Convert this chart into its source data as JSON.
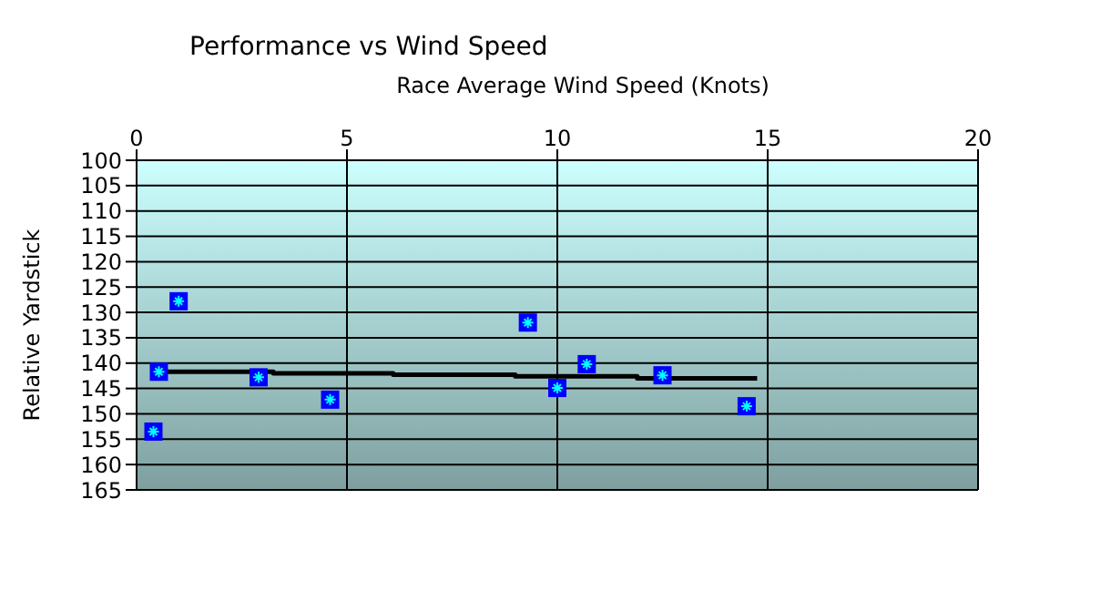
{
  "chart_data": {
    "type": "scatter",
    "title": "Performance vs Wind Speed",
    "xlabel": "Race Average Wind Speed (Knots)",
    "ylabel": "Relative Yardstick",
    "xlim": [
      0,
      20
    ],
    "xticks": [
      0,
      5,
      10,
      15,
      20
    ],
    "ylim": [
      165,
      100
    ],
    "yticks": [
      100,
      105,
      110,
      115,
      120,
      125,
      130,
      135,
      140,
      145,
      150,
      155,
      160,
      165
    ],
    "grid": true,
    "legend": false,
    "marker": "square",
    "series": [
      {
        "color": "#0000ff",
        "x": [
          0.4,
          0.53,
          1.0,
          2.9,
          4.6,
          9.3,
          10.0,
          10.7,
          12.5,
          14.5
        ],
        "values": [
          153.5,
          141.7,
          127.8,
          142.8,
          147.2,
          132.0,
          144.9,
          140.2,
          142.4,
          148.5
        ]
      },
      {
        "type": "line",
        "color": "#000000",
        "marker": "none",
        "line_style": "solid",
        "x": [
          0.4,
          3.25,
          3.25,
          6.1,
          6.1,
          9.0,
          9.0,
          11.9,
          11.9,
          14.75
        ],
        "values": [
          141.7,
          141.7,
          142.0,
          142.0,
          142.3,
          142.3,
          142.6,
          142.6,
          143.0,
          143.0
        ]
      }
    ]
  }
}
